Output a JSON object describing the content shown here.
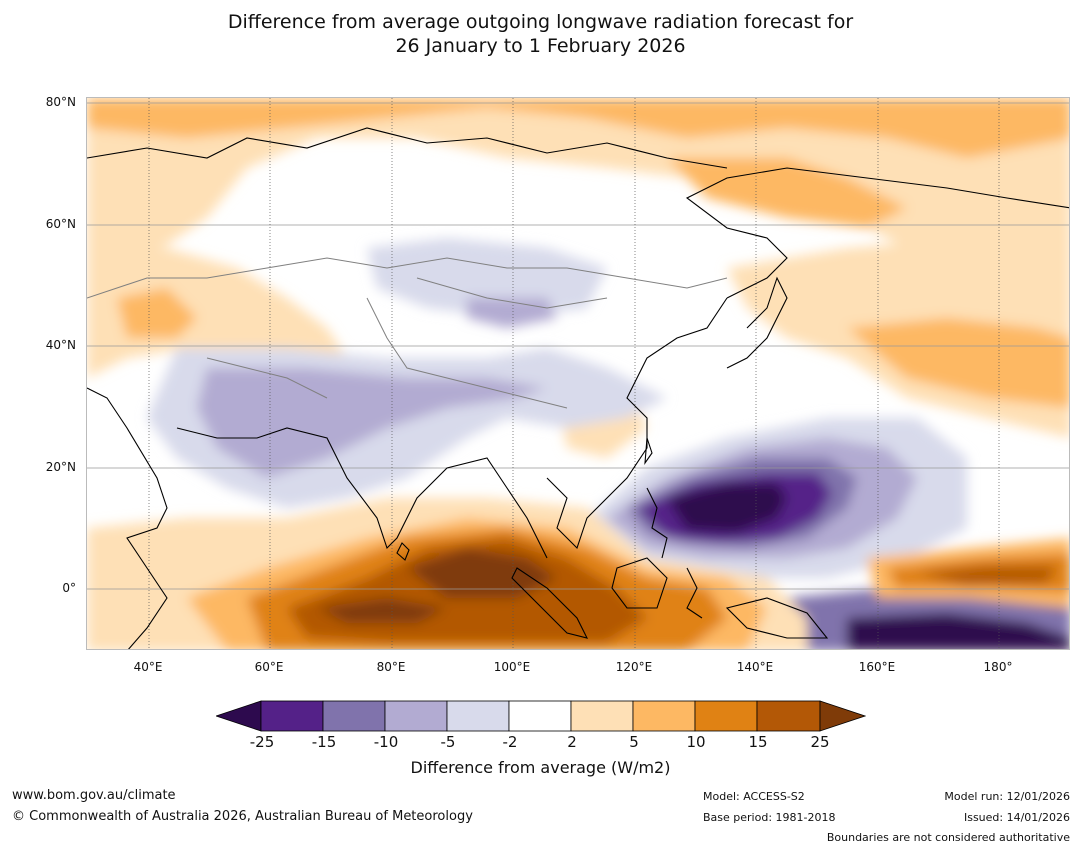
{
  "title": {
    "line1": "Difference from average outgoing longwave radiation forecast for",
    "line2": "26 January to 1 February 2026"
  },
  "axes": {
    "lat_labels": [
      "80°N",
      "60°N",
      "40°N",
      "20°N",
      "0°"
    ],
    "lon_labels": [
      "40°E",
      "60°E",
      "80°E",
      "100°E",
      "120°E",
      "140°E",
      "160°E",
      "180°"
    ]
  },
  "colorbar": {
    "ticks": [
      "-25",
      "-15",
      "-10",
      "-5",
      "-2",
      "2",
      "5",
      "10",
      "15",
      "25"
    ],
    "colors": [
      "#2d0a4e",
      "#542188",
      "#8073ac",
      "#b2abd2",
      "#d8daeb",
      "#ffffff",
      "#fee0b6",
      "#fdb863",
      "#e08214",
      "#b35806",
      "#7f3b08"
    ],
    "label": "Difference from average (W/m2)"
  },
  "footer": {
    "url": "www.bom.gov.au/climate",
    "copyright": "© Commonwealth of Australia 2026, Australian Bureau of Meteorology",
    "model": "Model: ACCESS-S2",
    "base_period": "Base period: 1981-2018",
    "model_run": "Model run: 12/01/2026",
    "issued": "Issued: 14/01/2026",
    "disclaimer": "Boundaries are not considered authoritative"
  }
}
